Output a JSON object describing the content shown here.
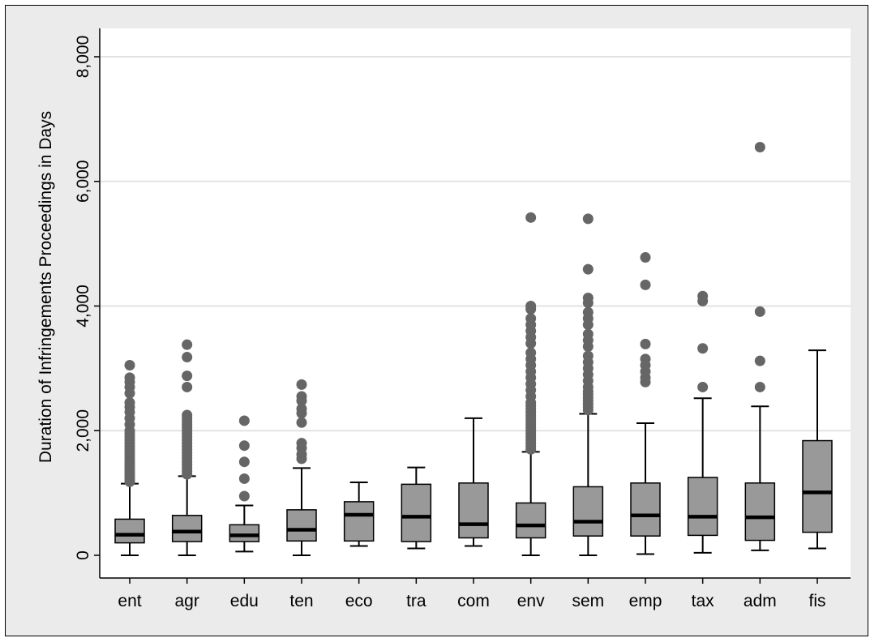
{
  "chart_data": {
    "type": "box",
    "title": "",
    "xlabel": "",
    "ylabel": "Duration of Infringements Proceedings in Days",
    "ylim": [
      -350,
      8200
    ],
    "yticks": [
      0,
      2000,
      4000,
      6000,
      8000
    ],
    "ytick_labels": [
      "0",
      "2,000",
      "4,000",
      "6,000",
      "8,000"
    ],
    "grid": "horizontal",
    "categories": [
      "ent",
      "agr",
      "edu",
      "ten",
      "eco",
      "tra",
      "com",
      "env",
      "sem",
      "emp",
      "tax",
      "adm",
      "fis"
    ],
    "boxes": [
      {
        "category": "ent",
        "whisker_low": 0,
        "q1": 200,
        "median": 330,
        "q3": 580,
        "whisker_high": 1150,
        "outliers": [
          1180,
          1220,
          1260,
          1300,
          1340,
          1380,
          1420,
          1460,
          1500,
          1550,
          1600,
          1650,
          1700,
          1750,
          1800,
          1850,
          1900,
          1950,
          2000,
          2100,
          2200,
          2300,
          2380,
          2450,
          2600,
          2700,
          2780,
          2850,
          3050
        ]
      },
      {
        "category": "agr",
        "whisker_low": 0,
        "q1": 220,
        "median": 380,
        "q3": 640,
        "whisker_high": 1270,
        "outliers": [
          1300,
          1350,
          1400,
          1450,
          1500,
          1550,
          1600,
          1650,
          1700,
          1750,
          1800,
          1850,
          1900,
          1950,
          2000,
          2050,
          2100,
          2150,
          2200,
          2250,
          2700,
          2880,
          3180,
          3380
        ]
      },
      {
        "category": "edu",
        "whisker_low": 60,
        "q1": 220,
        "median": 320,
        "q3": 490,
        "whisker_high": 800,
        "outliers": [
          950,
          1230,
          1500,
          1760,
          2160
        ]
      },
      {
        "category": "ten",
        "whisker_low": 0,
        "q1": 230,
        "median": 410,
        "q3": 730,
        "whisker_high": 1400,
        "outliers": [
          1550,
          1620,
          1720,
          1800,
          2130,
          2280,
          2350,
          2480,
          2550,
          2740
        ]
      },
      {
        "category": "eco",
        "whisker_low": 150,
        "q1": 230,
        "median": 650,
        "q3": 860,
        "whisker_high": 1170,
        "outliers": []
      },
      {
        "category": "tra",
        "whisker_low": 110,
        "q1": 220,
        "median": 620,
        "q3": 1140,
        "whisker_high": 1410,
        "outliers": []
      },
      {
        "category": "com",
        "whisker_low": 150,
        "q1": 280,
        "median": 500,
        "q3": 1160,
        "whisker_high": 2200,
        "outliers": []
      },
      {
        "category": "env",
        "whisker_low": 0,
        "q1": 280,
        "median": 480,
        "q3": 840,
        "whisker_high": 1660,
        "outliers": [
          1700,
          1750,
          1800,
          1850,
          1900,
          1950,
          2000,
          2050,
          2100,
          2150,
          2200,
          2250,
          2300,
          2350,
          2400,
          2450,
          2550,
          2650,
          2750,
          2850,
          2950,
          3050,
          3150,
          3250,
          3400,
          3500,
          3600,
          3700,
          3800,
          3950,
          4000,
          5420
        ]
      },
      {
        "category": "sem",
        "whisker_low": 0,
        "q1": 310,
        "median": 540,
        "q3": 1100,
        "whisker_high": 2270,
        "outliers": [
          2330,
          2380,
          2430,
          2480,
          2530,
          2580,
          2630,
          2700,
          2800,
          2900,
          3000,
          3100,
          3200,
          3350,
          3450,
          3550,
          3700,
          3800,
          3900,
          4050,
          4130,
          4590,
          5400
        ]
      },
      {
        "category": "emp",
        "whisker_low": 20,
        "q1": 310,
        "median": 640,
        "q3": 1160,
        "whisker_high": 2120,
        "outliers": [
          2780,
          2850,
          2950,
          3050,
          3150,
          3390,
          4340,
          4780
        ]
      },
      {
        "category": "tax",
        "whisker_low": 40,
        "q1": 320,
        "median": 620,
        "q3": 1250,
        "whisker_high": 2520,
        "outliers": [
          2700,
          3320,
          4080,
          4160
        ]
      },
      {
        "category": "adm",
        "whisker_low": 80,
        "q1": 240,
        "median": 610,
        "q3": 1160,
        "whisker_high": 2390,
        "outliers": [
          2700,
          3120,
          3910,
          6550
        ]
      },
      {
        "category": "fis",
        "whisker_low": 110,
        "q1": 370,
        "median": 1010,
        "q3": 1840,
        "whisker_high": 3290,
        "outliers": []
      }
    ],
    "colors": {
      "background": "#ebebeb",
      "plot_background": "#ffffff",
      "box_fill": "#999999",
      "marker": "#666666",
      "grid": "#e3e3e3",
      "line": "#000000"
    }
  }
}
